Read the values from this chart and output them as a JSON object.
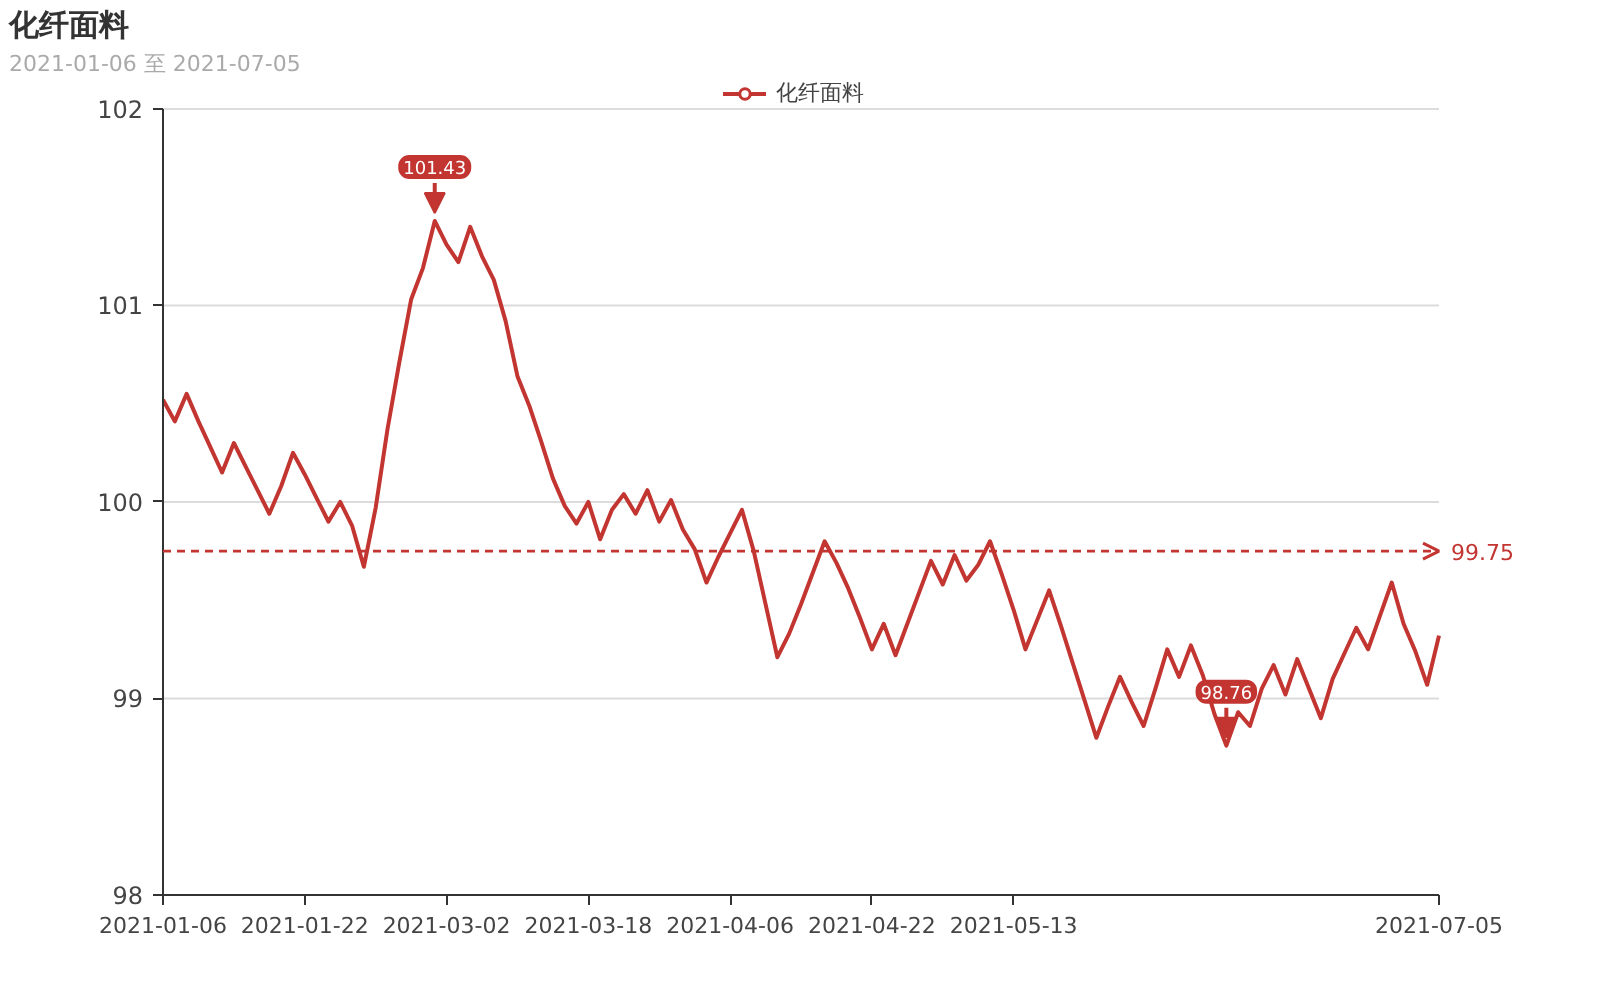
{
  "chart_data": {
    "type": "line",
    "title": "化纤面料",
    "subtitle": "2021-01-06 至 2021-07-05",
    "categories": [
      "2021-01-06",
      null,
      null,
      null,
      null,
      null,
      null,
      null,
      null,
      null,
      null,
      null,
      "2021-01-22",
      null,
      null,
      null,
      null,
      null,
      null,
      null,
      null,
      null,
      null,
      null,
      "2021-03-02",
      null,
      null,
      null,
      null,
      null,
      null,
      null,
      null,
      null,
      null,
      null,
      "2021-03-18",
      null,
      null,
      null,
      null,
      null,
      null,
      null,
      null,
      null,
      null,
      null,
      "2021-04-06",
      null,
      null,
      null,
      null,
      null,
      null,
      null,
      null,
      null,
      null,
      null,
      "2021-04-22",
      null,
      null,
      null,
      null,
      null,
      null,
      null,
      null,
      null,
      null,
      null,
      "2021-05-13",
      null,
      null,
      null,
      null,
      null,
      null,
      null,
      null,
      null,
      null,
      null,
      null,
      null,
      null,
      null,
      null,
      null,
      null,
      null,
      null,
      null,
      null,
      null,
      null,
      null,
      null,
      null,
      null,
      null,
      null,
      null,
      null,
      null,
      null,
      null,
      "2021-07-05"
    ],
    "series": [
      {
        "name": "化纤面料",
        "color": "#c23531",
        "values": [
          100.52,
          100.41,
          100.55,
          100.41,
          100.28,
          100.15,
          100.3,
          100.18,
          100.06,
          99.94,
          100.08,
          100.25,
          100.14,
          100.02,
          99.9,
          100.0,
          99.88,
          99.67,
          99.97,
          100.37,
          100.71,
          101.03,
          101.19,
          101.43,
          101.31,
          101.22,
          101.4,
          101.25,
          101.13,
          100.92,
          100.64,
          100.49,
          100.31,
          100.12,
          99.98,
          99.89,
          100.0,
          99.81,
          99.96,
          100.04,
          99.94,
          100.06,
          99.9,
          100.01,
          99.86,
          99.76,
          99.59,
          99.72,
          99.84,
          99.96,
          99.75,
          99.48,
          99.21,
          99.33,
          99.48,
          99.64,
          99.8,
          99.69,
          99.56,
          99.41,
          99.25,
          99.38,
          99.22,
          99.38,
          99.54,
          99.7,
          99.58,
          99.73,
          99.6,
          99.68,
          99.8,
          99.63,
          99.45,
          99.25,
          99.4,
          99.55,
          99.37,
          99.18,
          98.99,
          98.8,
          98.96,
          99.11,
          98.98,
          98.86,
          99.05,
          99.25,
          99.11,
          99.27,
          99.12,
          98.92,
          98.76,
          98.93,
          98.86,
          99.05,
          99.17,
          99.02,
          99.2,
          99.05,
          98.9,
          99.1,
          99.23,
          99.36,
          99.25,
          99.42,
          99.59,
          99.38,
          99.24,
          99.07,
          99.32
        ]
      }
    ],
    "ylim": [
      98,
      102
    ],
    "yticks": [
      98,
      99,
      100,
      101,
      102
    ],
    "grid": "y",
    "legend": "top",
    "ref_lines": [
      {
        "axis": "y",
        "value": 99.75,
        "label": "99.75",
        "color": "#c23531",
        "line_style": "dashed"
      }
    ],
    "annotations": [
      {
        "text": "101.43",
        "y": 101.43
      },
      {
        "text": "98.76",
        "y": 98.76
      }
    ]
  }
}
